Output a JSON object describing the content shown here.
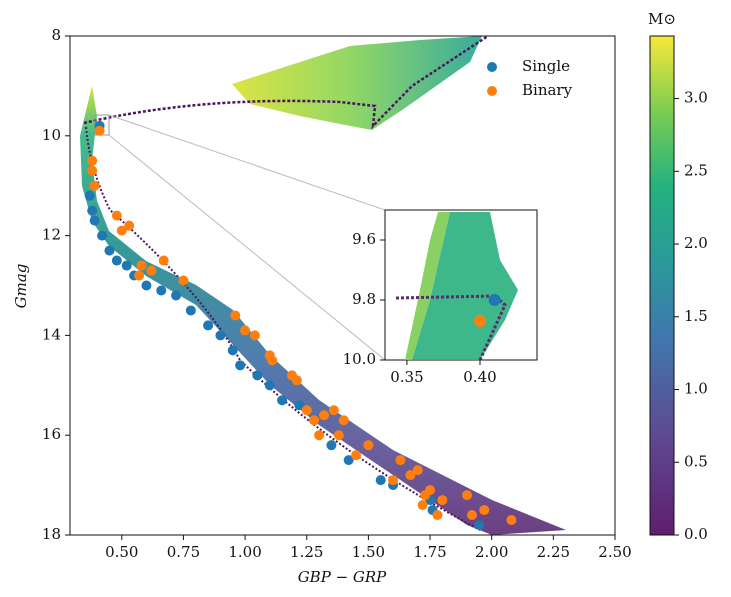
{
  "chart_data": [
    {
      "type": "scatter",
      "x_label": "GBP − GRP",
      "y_label": "Gmag",
      "xlim": [
        0.29,
        2.5
      ],
      "ylim": [
        8,
        18
      ],
      "y_inverted": true,
      "xticks": [
        {
          "value": 0.5,
          "label": "0.50"
        },
        {
          "value": 0.75,
          "label": "0.75"
        },
        {
          "value": 1.0,
          "label": "1.00"
        },
        {
          "value": 1.25,
          "label": "1.25"
        },
        {
          "value": 1.5,
          "label": "1.50"
        },
        {
          "value": 1.75,
          "label": "1.75"
        },
        {
          "value": 2.0,
          "label": "2.00"
        },
        {
          "value": 2.25,
          "label": "2.25"
        },
        {
          "value": 2.5,
          "label": "2.50"
        }
      ],
      "yticks": [
        8,
        10,
        12,
        14,
        16,
        18
      ],
      "grid": false,
      "legend": "upper right",
      "series": [
        {
          "name": "Single",
          "color": "#1f77b4",
          "x": [
            0.41,
            0.37,
            0.38,
            0.39,
            0.42,
            0.45,
            0.48,
            0.52,
            0.55,
            0.6,
            0.66,
            0.72,
            0.78,
            0.85,
            0.9,
            0.95,
            0.98,
            1.05,
            1.1,
            1.15,
            1.22,
            1.28,
            1.35,
            1.42,
            1.55,
            1.6,
            1.75,
            1.76,
            1.95
          ],
          "values": [
            9.8,
            11.2,
            11.5,
            11.7,
            12.0,
            12.3,
            12.5,
            12.6,
            12.8,
            13.0,
            13.1,
            13.2,
            13.5,
            13.8,
            14.0,
            14.3,
            14.6,
            14.8,
            15.0,
            15.3,
            15.4,
            15.7,
            16.2,
            16.5,
            16.9,
            17.0,
            17.3,
            17.5,
            17.8
          ]
        },
        {
          "name": "Binary",
          "color": "#ff7f0e",
          "x": [
            0.41,
            0.38,
            0.38,
            0.39,
            0.48,
            0.5,
            0.53,
            0.58,
            0.62,
            0.57,
            0.67,
            0.75,
            0.96,
            1.0,
            1.04,
            1.1,
            1.11,
            1.19,
            1.21,
            1.25,
            1.28,
            1.32,
            1.36,
            1.4,
            1.3,
            1.38,
            1.5,
            1.45,
            1.63,
            1.6,
            1.67,
            1.7,
            1.75,
            1.8,
            1.9,
            1.73,
            1.72,
            1.78,
            1.97,
            2.08,
            1.92
          ],
          "values": [
            9.9,
            10.5,
            10.7,
            11.0,
            11.6,
            11.9,
            11.8,
            12.6,
            12.7,
            12.8,
            12.5,
            12.9,
            13.6,
            13.9,
            14.0,
            14.4,
            14.5,
            14.8,
            14.9,
            15.5,
            15.7,
            15.6,
            15.5,
            15.7,
            16.0,
            16.0,
            16.2,
            16.4,
            16.5,
            16.9,
            16.8,
            16.7,
            17.1,
            17.3,
            17.2,
            17.2,
            17.4,
            17.6,
            17.5,
            17.7,
            17.6
          ]
        }
      ],
      "colorbar": {
        "label": "M⊙",
        "lim": [
          0,
          3.43
        ],
        "ticks": [
          {
            "value": 0,
            "label": "0.0"
          },
          {
            "value": 0.5,
            "label": "0.5"
          },
          {
            "value": 1.0,
            "label": "1.0"
          },
          {
            "value": 1.5,
            "label": "1.5"
          },
          {
            "value": 2.0,
            "label": "2.0"
          },
          {
            "value": 2.5,
            "label": "2.5"
          },
          {
            "value": 3.0,
            "label": "3.0"
          }
        ]
      }
    },
    {
      "type": "scatter",
      "xlim": [
        0.335,
        0.439
      ],
      "ylim": [
        9.5,
        10.0
      ],
      "y_inverted": true,
      "xticks": [
        0.35,
        {
          "value": 0.4,
          "label": "0.40"
        }
      ],
      "yticks": [
        9.6,
        9.8,
        {
          "value": 10.0,
          "label": "10.0"
        }
      ],
      "series": [
        {
          "color": "#1f77b4",
          "x": [
            0.41
          ],
          "values": [
            9.8
          ]
        },
        {
          "color": "#ff7f0e",
          "x": [
            0.4
          ],
          "values": [
            9.87
          ]
        }
      ]
    }
  ]
}
